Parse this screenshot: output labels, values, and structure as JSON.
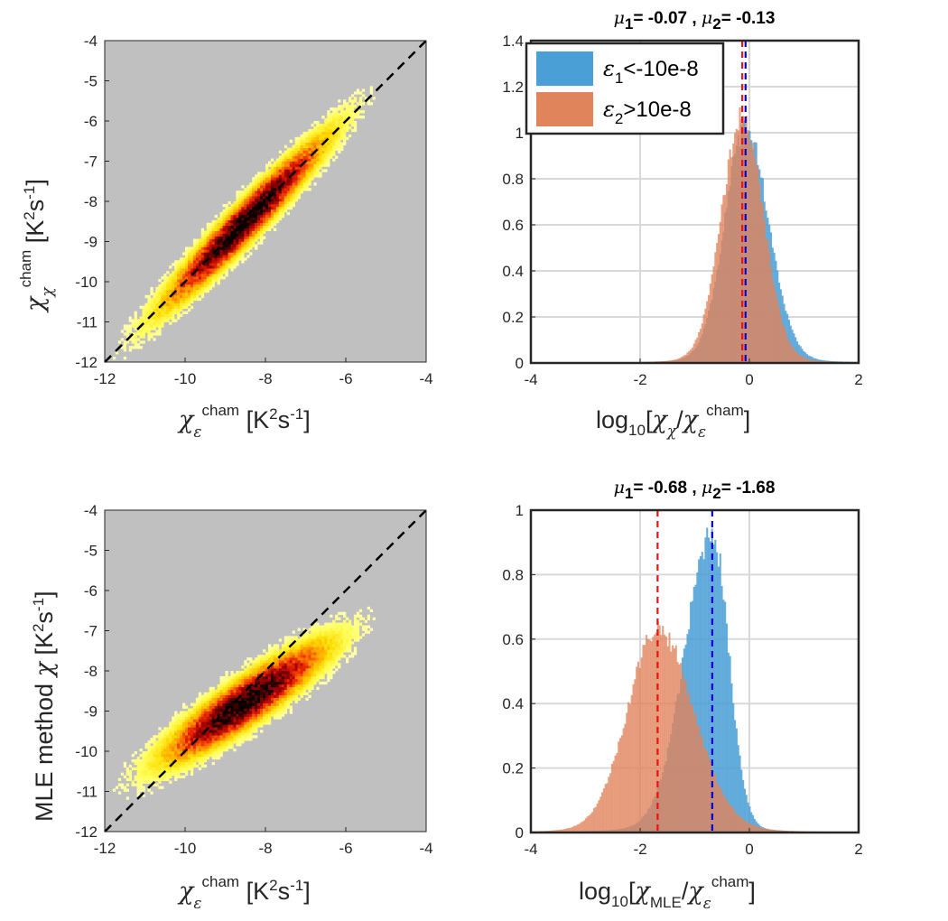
{
  "colors": {
    "background_panel": "#c0c0c0",
    "series1": "#4a9fd6",
    "series2": "#e0845c",
    "mean1_line": "#0000dd",
    "mean2_line": "#ee1111",
    "diagonal": "#000000"
  },
  "chart_data": [
    {
      "type": "heatmap",
      "id": "scatter_top",
      "xlabel": "χ_ε^cham [K²s⁻¹]",
      "ylabel": "χ_χ^cham [K²s⁻¹]",
      "xlim": [
        -12,
        -4
      ],
      "ylim": [
        -12,
        -4
      ],
      "xticks": [
        "-12",
        "-10",
        "-8",
        "-6",
        "-4"
      ],
      "yticks": [
        "-12",
        "-11",
        "-10",
        "-9",
        "-8",
        "-7",
        "-6",
        "-5",
        "-4"
      ],
      "reference_line": "1:1 dashed",
      "density": {
        "slope": 1.0,
        "intercept": 0.0,
        "x_center": -8.5,
        "x_spread": 1.1,
        "scatter": 0.32
      }
    },
    {
      "type": "bar",
      "id": "hist_top",
      "title_parts": {
        "mu1_label": "-0.07",
        "mu2_label": "-0.13"
      },
      "xlabel": "log₁₀[χ_χ/χ_ε^cham]",
      "xlim": [
        -4,
        2
      ],
      "ylim": [
        0,
        1.4
      ],
      "xticks": [
        "-4",
        "-2",
        "0",
        "2"
      ],
      "yticks": [
        "0",
        "0.2",
        "0.4",
        "0.6",
        "0.8",
        "1",
        "1.2",
        "1.4"
      ],
      "legend": {
        "placement": "top-left",
        "entries": [
          "ε₁<-10e-8",
          "ε₂>10e-8"
        ]
      },
      "series": [
        {
          "name": "ε₁<-10e-8",
          "mean": -0.07,
          "peak": 0.99,
          "sigma_left": 0.38,
          "sigma_right": 0.42
        },
        {
          "name": "ε₂>10e-8",
          "mean": -0.13,
          "peak": 1.03,
          "sigma_left": 0.38,
          "sigma_right": 0.38
        }
      ]
    },
    {
      "type": "heatmap",
      "id": "scatter_bottom",
      "xlabel": "χ_ε^cham [K²s⁻¹]",
      "ylabel": "MLE method χ [K²s⁻¹]",
      "xlim": [
        -12,
        -4
      ],
      "ylim": [
        -12,
        -4
      ],
      "xticks": [
        "-12",
        "-10",
        "-8",
        "-6",
        "-4"
      ],
      "yticks": [
        "-12",
        "-11",
        "-10",
        "-9",
        "-8",
        "-7",
        "-6",
        "-5",
        "-4"
      ],
      "reference_line": "1:1 dashed",
      "density": {
        "slope": 0.65,
        "intercept": -3.25,
        "x_center": -8.5,
        "x_spread": 1.1,
        "scatter": 0.35
      }
    },
    {
      "type": "bar",
      "id": "hist_bottom",
      "title_parts": {
        "mu1_label": "-0.68",
        "mu2_label": "-1.68"
      },
      "xlabel": "log₁₀[χ_MLE/χ_ε^cham]",
      "xlim": [
        -4,
        2
      ],
      "ylim": [
        0,
        1
      ],
      "xticks": [
        "-4",
        "-2",
        "0",
        "2"
      ],
      "yticks": [
        "0",
        "0.2",
        "0.4",
        "0.6",
        "0.8",
        "1"
      ],
      "series": [
        {
          "name": "ε₁<-10e-8",
          "mean": -0.68,
          "peak": 0.9,
          "sigma_left": 0.5,
          "sigma_right": 0.3
        },
        {
          "name": "ε₂>10e-8",
          "mean": -1.68,
          "peak": 0.61,
          "sigma_left": 0.55,
          "sigma_right": 0.65
        }
      ]
    }
  ]
}
